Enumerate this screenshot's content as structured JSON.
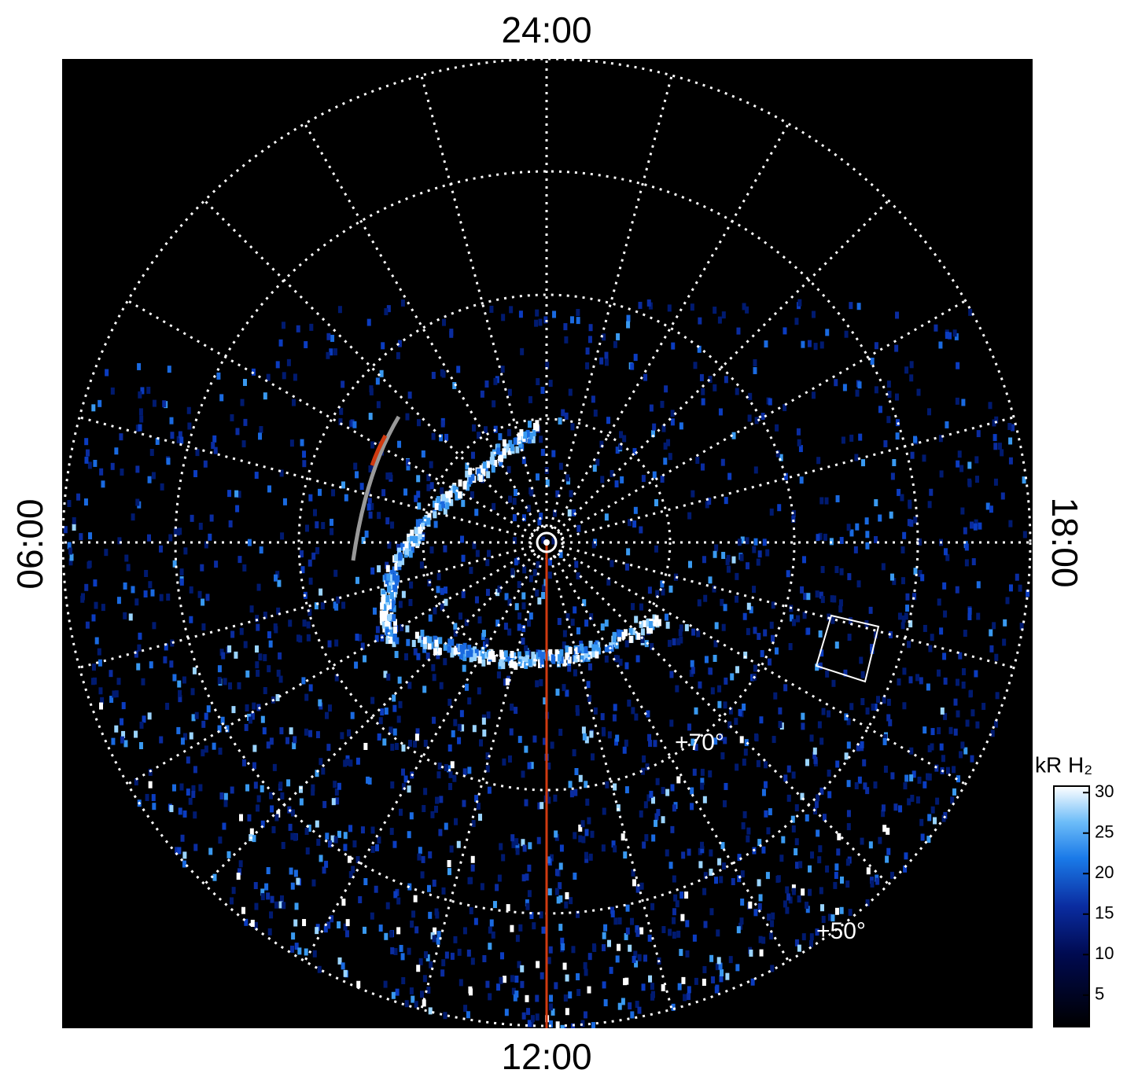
{
  "labels": {
    "top": "24:00",
    "bottom": "12:00",
    "left": "06:00",
    "right": "18:00",
    "lat_70": "+70°",
    "lat_50": "+50°"
  },
  "colorbar": {
    "label": "kR H₂",
    "lim": [
      1.1,
      30.8
    ],
    "ticks": [
      5,
      10,
      15,
      20,
      25,
      30
    ]
  }
}
